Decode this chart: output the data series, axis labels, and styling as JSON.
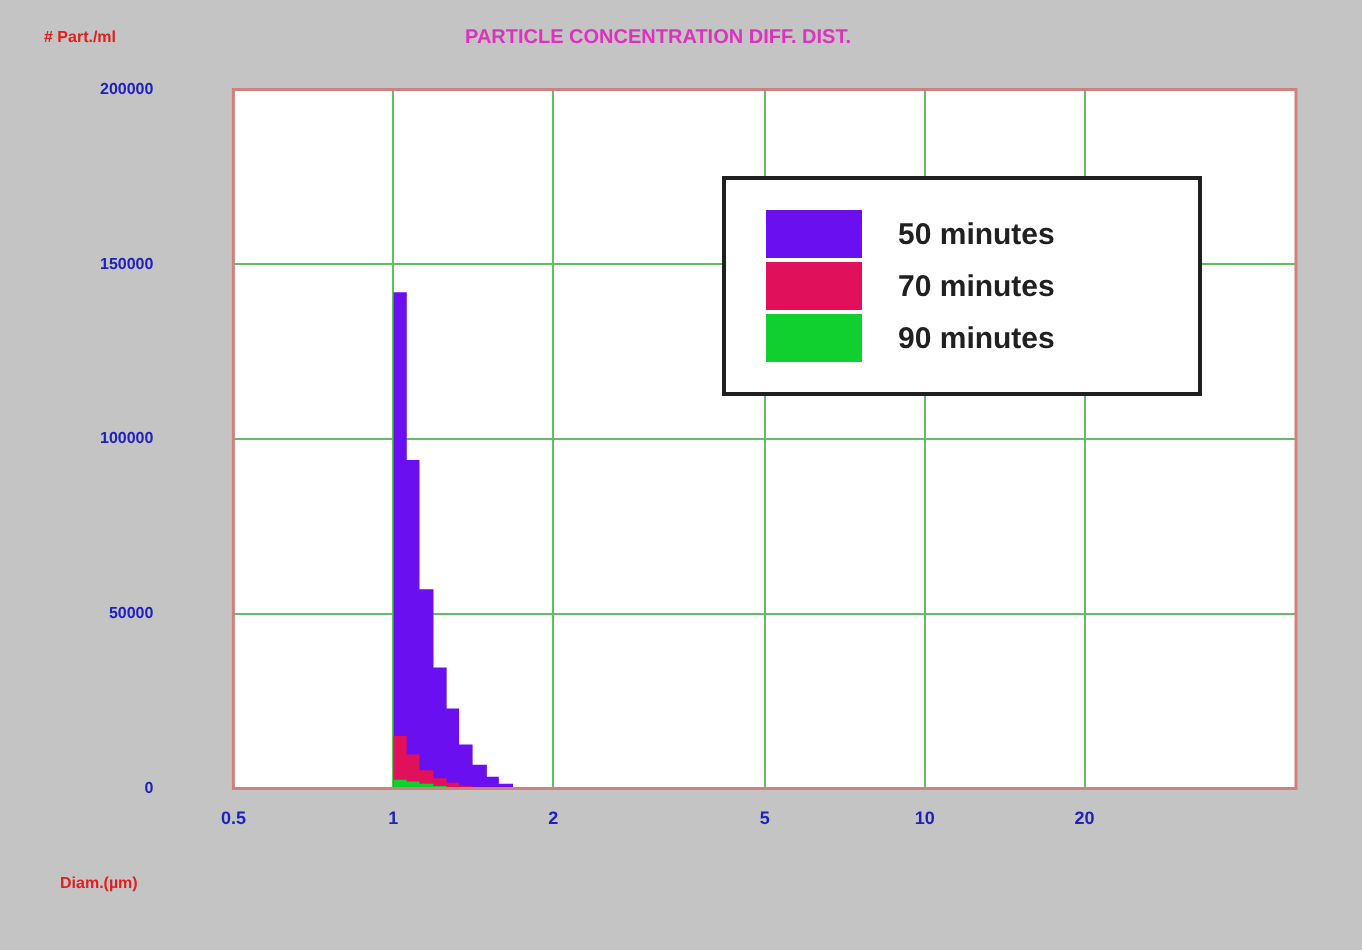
{
  "chart_data": {
    "type": "histogram",
    "title": "PARTICLE CONCENTRATION DIFF. DIST.",
    "xlabel": "Diam.(µm)",
    "ylabel": "# Part./ml",
    "bins": [
      1.0,
      1.06,
      1.12,
      1.19,
      1.26,
      1.33,
      1.41,
      1.5,
      1.58,
      1.68,
      1.78,
      1.88,
      2.0,
      2.11,
      2.24,
      2.37
    ],
    "series": [
      {
        "name": "50 minutes",
        "color": "#6a10f0",
        "values": [
          142000,
          94000,
          57000,
          34600,
          22900,
          12600,
          6800,
          3300,
          1300,
          400,
          300,
          200,
          200,
          100,
          100
        ]
      },
      {
        "name": "70 minutes",
        "color": "#e0105a",
        "values": [
          15000,
          9700,
          5200,
          2900,
          1600,
          700,
          300,
          100,
          0,
          0,
          0,
          0,
          0,
          0,
          0
        ]
      },
      {
        "name": "90 minutes",
        "color": "#10d030",
        "values": [
          2500,
          2000,
          1300,
          700,
          400,
          200,
          100,
          0,
          0,
          0,
          0,
          0,
          0,
          0,
          0
        ]
      }
    ],
    "log": "x",
    "xlim": [
      0.5,
      50
    ],
    "xticks": [
      0.5,
      1,
      2,
      5,
      10,
      20
    ],
    "ylim": [
      0,
      200000
    ],
    "yticks": [
      0,
      50000,
      100000,
      150000,
      200000
    ],
    "grid": true,
    "legend": "top right"
  }
}
